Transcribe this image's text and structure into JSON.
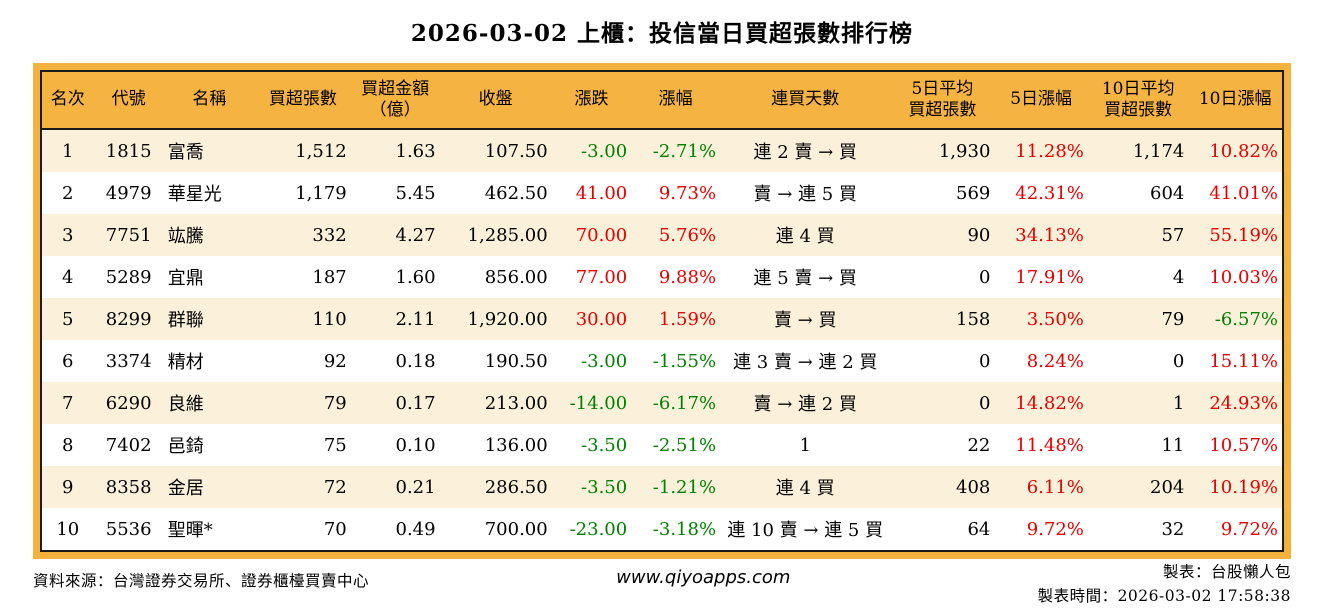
{
  "title": "2026-03-02 上櫃：投信當日買超張數排行榜",
  "colors": {
    "header_bg": "#f5b341",
    "frame_gold": "#f3b13d",
    "row_alt_cream": "#fbf1da",
    "up_red": "#e60000",
    "down_green": "#008000"
  },
  "table": {
    "columns": [
      {
        "key": "rank",
        "label": "名次",
        "align": "center",
        "signed": false
      },
      {
        "key": "code",
        "label": "代號",
        "align": "center",
        "signed": false
      },
      {
        "key": "name",
        "label": "名稱",
        "align": "left",
        "signed": false
      },
      {
        "key": "net_buy",
        "label": "買超張數",
        "align": "right",
        "signed": false
      },
      {
        "key": "amount",
        "label": "買超金額\n（億）",
        "align": "right",
        "signed": false
      },
      {
        "key": "close",
        "label": "收盤",
        "align": "right",
        "signed": false
      },
      {
        "key": "change",
        "label": "漲跌",
        "align": "right",
        "signed": true
      },
      {
        "key": "change_pct",
        "label": "漲幅",
        "align": "right",
        "signed": true
      },
      {
        "key": "streak",
        "label": "連買天數",
        "align": "center",
        "signed": false
      },
      {
        "key": "avg5",
        "label": "5日平均\n買超張數",
        "align": "right",
        "signed": false
      },
      {
        "key": "pct5",
        "label": "5日漲幅",
        "align": "right",
        "signed": true
      },
      {
        "key": "avg10",
        "label": "10日平均\n買超張數",
        "align": "right",
        "signed": false
      },
      {
        "key": "pct10",
        "label": "10日漲幅",
        "align": "right",
        "signed": true
      }
    ],
    "rows": [
      {
        "rank": "1",
        "code": "1815",
        "name": "富喬",
        "net_buy": "1,512",
        "amount": "1.63",
        "close": "107.50",
        "change": "-3.00",
        "change_pct": "-2.71%",
        "streak": "連 2 賣 → 買",
        "avg5": "1,930",
        "pct5": "11.28%",
        "avg10": "1,174",
        "pct10": "10.82%"
      },
      {
        "rank": "2",
        "code": "4979",
        "name": "華星光",
        "net_buy": "1,179",
        "amount": "5.45",
        "close": "462.50",
        "change": "41.00",
        "change_pct": "9.73%",
        "streak": "賣 → 連 5 買",
        "avg5": "569",
        "pct5": "42.31%",
        "avg10": "604",
        "pct10": "41.01%"
      },
      {
        "rank": "3",
        "code": "7751",
        "name": "竑騰",
        "net_buy": "332",
        "amount": "4.27",
        "close": "1,285.00",
        "change": "70.00",
        "change_pct": "5.76%",
        "streak": "連 4 買",
        "avg5": "90",
        "pct5": "34.13%",
        "avg10": "57",
        "pct10": "55.19%"
      },
      {
        "rank": "4",
        "code": "5289",
        "name": "宜鼎",
        "net_buy": "187",
        "amount": "1.60",
        "close": "856.00",
        "change": "77.00",
        "change_pct": "9.88%",
        "streak": "連 5 賣 → 買",
        "avg5": "0",
        "pct5": "17.91%",
        "avg10": "4",
        "pct10": "10.03%"
      },
      {
        "rank": "5",
        "code": "8299",
        "name": "群聯",
        "net_buy": "110",
        "amount": "2.11",
        "close": "1,920.00",
        "change": "30.00",
        "change_pct": "1.59%",
        "streak": "賣 → 買",
        "avg5": "158",
        "pct5": "3.50%",
        "avg10": "79",
        "pct10": "-6.57%"
      },
      {
        "rank": "6",
        "code": "3374",
        "name": "精材",
        "net_buy": "92",
        "amount": "0.18",
        "close": "190.50",
        "change": "-3.00",
        "change_pct": "-1.55%",
        "streak": "連 3 賣 → 連 2 買",
        "avg5": "0",
        "pct5": "8.24%",
        "avg10": "0",
        "pct10": "15.11%"
      },
      {
        "rank": "7",
        "code": "6290",
        "name": "良維",
        "net_buy": "79",
        "amount": "0.17",
        "close": "213.00",
        "change": "-14.00",
        "change_pct": "-6.17%",
        "streak": "賣 → 連 2 買",
        "avg5": "0",
        "pct5": "14.82%",
        "avg10": "1",
        "pct10": "24.93%"
      },
      {
        "rank": "8",
        "code": "7402",
        "name": "邑錡",
        "net_buy": "75",
        "amount": "0.10",
        "close": "136.00",
        "change": "-3.50",
        "change_pct": "-2.51%",
        "streak": "1",
        "avg5": "22",
        "pct5": "11.48%",
        "avg10": "11",
        "pct10": "10.57%"
      },
      {
        "rank": "9",
        "code": "8358",
        "name": "金居",
        "net_buy": "72",
        "amount": "0.21",
        "close": "286.50",
        "change": "-3.50",
        "change_pct": "-1.21%",
        "streak": "連 4 買",
        "avg5": "408",
        "pct5": "6.11%",
        "avg10": "204",
        "pct10": "10.19%"
      },
      {
        "rank": "10",
        "code": "5536",
        "name": "聖暉*",
        "net_buy": "70",
        "amount": "0.49",
        "close": "700.00",
        "change": "-23.00",
        "change_pct": "-3.18%",
        "streak": "連 10 賣 → 連 5 買",
        "avg5": "64",
        "pct5": "9.72%",
        "avg10": "32",
        "pct10": "9.72%"
      }
    ]
  },
  "footer": {
    "source": "資料來源：台灣證券交易所、證券櫃檯買賣中心",
    "site": "www.qiyoapps.com",
    "made_by": "製表：台股懶人包",
    "made_time": "製表時間：2026-03-02 17:58:38"
  }
}
